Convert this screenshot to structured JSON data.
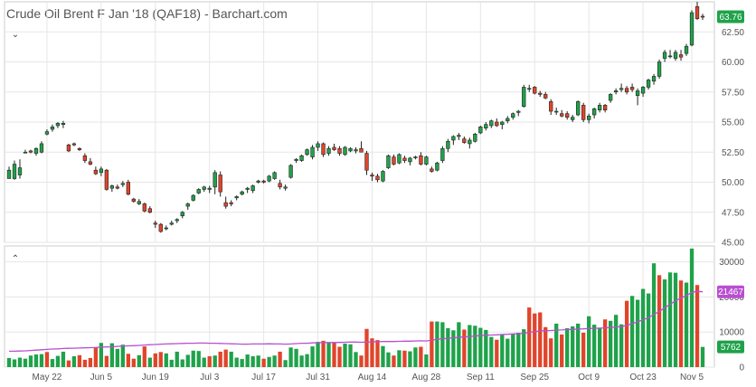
{
  "title": "Crude Oil Brent F Jan '18 (QAF18) - Barchart.com",
  "icons": {
    "price_toggle": "chevron-down-icon",
    "volume_toggle": "chevron-up-icon"
  },
  "colors": {
    "up": "#1fa24a",
    "down": "#e0452b",
    "ma": "#b84fd0",
    "grid": "#e6e6e6",
    "badge_price": "#1fa24a",
    "badge_ma": "#b84fd0",
    "badge_vol": "#1fa24a"
  },
  "chart_data": [
    {
      "type": "candlestick",
      "ylim": [
        45,
        65
      ],
      "yticks": [
        "45.00",
        "47.50",
        "50.00",
        "52.50",
        "55.00",
        "57.50",
        "60.00",
        "62.50"
      ],
      "last_price_label": "63.76",
      "last_price": 63.76,
      "grid": true,
      "x_labels": [
        "May 22",
        "Jun 5",
        "Jun 19",
        "Jul 3",
        "Jul 17",
        "Jul 31",
        "Aug 14",
        "Aug 28",
        "Sep 11",
        "Sep 25",
        "Oct 9",
        "Oct 23",
        "Nov 5"
      ],
      "x_label_index": [
        7,
        17,
        27,
        37,
        47,
        57,
        67,
        77,
        87,
        97,
        107,
        117,
        126
      ],
      "ohlc": [
        [
          50.3,
          51.3,
          50.3,
          51.0
        ],
        [
          50.3,
          51.8,
          50.2,
          51.5
        ],
        [
          50.6,
          51.9,
          50.3,
          51.2
        ],
        [
          52.5,
          52.7,
          52.4,
          52.5
        ],
        [
          52.6,
          52.7,
          52.4,
          52.5
        ],
        [
          52.4,
          52.9,
          52.2,
          52.8
        ],
        [
          52.5,
          53.4,
          52.4,
          53.2
        ],
        [
          54.0,
          54.4,
          53.9,
          54.2
        ],
        [
          54.4,
          54.8,
          54.2,
          54.6
        ],
        [
          54.7,
          55.0,
          54.5,
          54.9
        ],
        [
          54.8,
          55.1,
          54.5,
          54.9
        ],
        [
          53.1,
          53.2,
          52.5,
          52.6
        ],
        [
          53.2,
          53.3,
          53.0,
          53.1
        ],
        [
          52.8,
          52.9,
          52.6,
          52.7
        ],
        [
          52.2,
          52.4,
          51.6,
          51.8
        ],
        [
          51.7,
          52.0,
          51.4,
          51.5
        ],
        [
          51.0,
          51.3,
          50.6,
          50.7
        ],
        [
          50.8,
          51.3,
          50.5,
          51.1
        ],
        [
          51.0,
          51.1,
          49.3,
          49.4
        ],
        [
          49.5,
          49.8,
          49.2,
          49.7
        ],
        [
          49.6,
          49.8,
          49.4,
          49.5
        ],
        [
          49.8,
          50.1,
          49.6,
          49.9
        ],
        [
          50.0,
          50.2,
          48.9,
          49.0
        ],
        [
          48.6,
          48.7,
          48.3,
          48.4
        ],
        [
          48.2,
          48.6,
          48.1,
          48.4
        ],
        [
          48.2,
          48.3,
          47.5,
          47.6
        ],
        [
          47.8,
          48.0,
          47.4,
          47.5
        ],
        [
          46.6,
          46.8,
          46.2,
          46.5
        ],
        [
          46.5,
          46.6,
          45.8,
          45.9
        ],
        [
          46.2,
          46.4,
          46.0,
          46.2
        ],
        [
          46.5,
          46.8,
          46.4,
          46.6
        ],
        [
          46.8,
          47.0,
          46.6,
          46.9
        ],
        [
          47.2,
          47.6,
          47.0,
          47.5
        ],
        [
          48.0,
          48.3,
          47.7,
          48.2
        ],
        [
          48.5,
          49.0,
          48.4,
          48.9
        ],
        [
          49.1,
          49.5,
          49.0,
          49.4
        ],
        [
          49.4,
          49.7,
          49.2,
          49.6
        ],
        [
          49.4,
          49.7,
          49.1,
          49.5
        ],
        [
          49.6,
          51.0,
          49.0,
          50.8
        ],
        [
          50.6,
          50.9,
          48.8,
          49.2
        ],
        [
          48.3,
          48.8,
          47.8,
          48.0
        ],
        [
          48.3,
          48.5,
          48.0,
          48.2
        ],
        [
          48.7,
          48.9,
          48.5,
          48.8
        ],
        [
          49.0,
          49.3,
          48.9,
          49.2
        ],
        [
          49.4,
          49.6,
          49.1,
          49.5
        ],
        [
          49.3,
          49.8,
          49.1,
          49.7
        ],
        [
          50.0,
          50.2,
          49.9,
          50.1
        ],
        [
          50.1,
          50.2,
          49.9,
          50.0
        ],
        [
          50.1,
          50.6,
          50.0,
          50.5
        ],
        [
          50.3,
          50.9,
          50.2,
          50.8
        ],
        [
          49.9,
          50.2,
          49.4,
          49.6
        ],
        [
          49.5,
          49.8,
          49.3,
          49.6
        ],
        [
          50.4,
          51.5,
          50.3,
          51.4
        ],
        [
          51.8,
          52.0,
          51.6,
          51.9
        ],
        [
          51.8,
          52.3,
          51.7,
          52.2
        ],
        [
          52.3,
          52.8,
          52.2,
          52.7
        ],
        [
          52.1,
          53.1,
          51.9,
          52.9
        ],
        [
          52.9,
          53.4,
          52.6,
          53.2
        ],
        [
          53.2,
          53.3,
          52.1,
          52.3
        ],
        [
          52.4,
          53.0,
          52.2,
          52.8
        ],
        [
          52.9,
          53.2,
          52.6,
          52.7
        ],
        [
          52.8,
          53.0,
          52.2,
          52.4
        ],
        [
          52.3,
          53.0,
          52.2,
          52.9
        ],
        [
          52.6,
          52.9,
          52.5,
          52.8
        ],
        [
          52.6,
          52.9,
          52.4,
          52.7
        ],
        [
          52.8,
          53.4,
          52.5,
          52.5
        ],
        [
          52.4,
          52.6,
          50.6,
          51.0
        ],
        [
          50.6,
          50.8,
          50.1,
          50.5
        ],
        [
          50.5,
          50.7,
          50.0,
          50.2
        ],
        [
          50.1,
          51.0,
          50.0,
          50.9
        ],
        [
          51.2,
          52.3,
          51.1,
          52.2
        ],
        [
          52.1,
          52.3,
          51.4,
          51.5
        ],
        [
          51.6,
          52.4,
          51.5,
          52.3
        ],
        [
          52.0,
          52.2,
          51.6,
          51.8
        ],
        [
          51.7,
          52.1,
          51.4,
          52.0
        ],
        [
          52.1,
          52.2,
          51.9,
          52.1
        ],
        [
          52.2,
          52.5,
          51.4,
          51.5
        ],
        [
          51.5,
          52.2,
          51.4,
          52.1
        ],
        [
          51.1,
          51.3,
          50.8,
          50.9
        ],
        [
          51.0,
          51.7,
          50.9,
          51.6
        ],
        [
          51.8,
          53.0,
          51.6,
          52.8
        ],
        [
          52.8,
          53.6,
          52.5,
          53.4
        ],
        [
          53.5,
          53.9,
          53.1,
          53.8
        ],
        [
          53.8,
          54.1,
          53.5,
          53.9
        ],
        [
          53.6,
          53.8,
          53.2,
          53.3
        ],
        [
          53.2,
          53.7,
          52.8,
          53.5
        ],
        [
          53.4,
          54.1,
          53.3,
          54.0
        ],
        [
          54.1,
          54.7,
          54.0,
          54.6
        ],
        [
          54.5,
          55.0,
          54.3,
          54.8
        ],
        [
          54.7,
          55.2,
          54.5,
          55.1
        ],
        [
          55.0,
          55.3,
          54.6,
          54.7
        ],
        [
          54.8,
          55.1,
          54.4,
          55.0
        ],
        [
          55.1,
          55.5,
          54.9,
          55.3
        ],
        [
          55.4,
          55.8,
          55.2,
          55.7
        ],
        [
          55.8,
          56.0,
          55.5,
          55.9
        ],
        [
          56.3,
          58.1,
          56.2,
          57.9
        ],
        [
          57.8,
          58.1,
          57.5,
          57.8
        ],
        [
          57.9,
          58.0,
          57.3,
          57.4
        ],
        [
          57.4,
          57.6,
          57.1,
          57.3
        ],
        [
          57.3,
          57.5,
          56.9,
          57.0
        ],
        [
          56.7,
          56.9,
          55.6,
          55.9
        ],
        [
          55.9,
          56.2,
          55.6,
          55.9
        ],
        [
          55.7,
          56.0,
          55.4,
          55.5
        ],
        [
          55.7,
          55.9,
          55.2,
          55.4
        ],
        [
          55.2,
          55.6,
          55.0,
          55.4
        ],
        [
          55.6,
          56.8,
          55.5,
          56.7
        ],
        [
          56.4,
          56.6,
          55.0,
          55.2
        ],
        [
          55.2,
          55.7,
          54.9,
          55.5
        ],
        [
          55.6,
          56.2,
          55.3,
          56.1
        ],
        [
          56.0,
          56.6,
          55.8,
          56.4
        ],
        [
          56.4,
          56.5,
          55.8,
          56.0
        ],
        [
          56.8,
          57.4,
          56.6,
          57.3
        ],
        [
          57.5,
          57.8,
          57.3,
          57.6
        ],
        [
          57.7,
          58.2,
          57.5,
          57.8
        ],
        [
          57.8,
          58.0,
          57.3,
          57.5
        ],
        [
          57.9,
          58.2,
          57.5,
          57.7
        ],
        [
          57.2,
          57.8,
          56.4,
          57.6
        ],
        [
          57.4,
          58.0,
          57.1,
          57.9
        ],
        [
          57.9,
          58.6,
          57.7,
          58.5
        ],
        [
          58.4,
          59.0,
          58.1,
          58.8
        ],
        [
          58.8,
          60.2,
          58.6,
          60.0
        ],
        [
          60.3,
          61.0,
          60.0,
          60.8
        ],
        [
          60.5,
          61.0,
          60.3,
          60.5
        ],
        [
          60.3,
          61.0,
          60.1,
          60.8
        ],
        [
          60.6,
          61.0,
          60.1,
          60.4
        ],
        [
          60.7,
          61.5,
          60.5,
          61.3
        ],
        [
          61.4,
          64.3,
          61.3,
          64.1
        ],
        [
          64.6,
          65.0,
          63.5,
          63.6
        ],
        [
          63.8,
          64.0,
          63.5,
          63.76
        ]
      ]
    },
    {
      "type": "bar",
      "ylim": [
        0,
        33000
      ],
      "yticks": [
        "0",
        "10000",
        "20000",
        "30000"
      ],
      "ma_label": "21467",
      "last_volume_label": "5762",
      "grid": true,
      "volume": [
        2600,
        2200,
        2700,
        2400,
        3300,
        3600,
        3700,
        4300,
        2300,
        3200,
        4400,
        1900,
        3100,
        3400,
        2100,
        2600,
        5500,
        6900,
        3200,
        6800,
        5200,
        6400,
        3800,
        2400,
        3400,
        5900,
        2700,
        3900,
        4300,
        3900,
        2100,
        4400,
        2200,
        3500,
        4700,
        4600,
        2700,
        3100,
        3300,
        4400,
        5000,
        4400,
        2700,
        2300,
        3600,
        3100,
        3300,
        2400,
        2900,
        3300,
        4400,
        2000,
        5600,
        5200,
        3300,
        3700,
        5900,
        7200,
        7500,
        6900,
        7000,
        5800,
        6700,
        6500,
        4300,
        3300,
        10900,
        8200,
        7700,
        6000,
        4200,
        3300,
        4800,
        4700,
        4500,
        5600,
        5800,
        3600,
        13000,
        13000,
        12800,
        11100,
        10500,
        12800,
        10700,
        12000,
        11800,
        11200,
        10600,
        8600,
        7800,
        9200,
        8100,
        9400,
        9800,
        10800,
        17000,
        15300,
        15600,
        11400,
        8200,
        12400,
        9300,
        11100,
        11600,
        12400,
        9800,
        14500,
        12100,
        11200,
        13600,
        13200,
        14900,
        12200,
        18900,
        20300,
        19200,
        22300,
        21000,
        29600,
        26200,
        25000,
        27000,
        26900,
        24700,
        24100,
        33800,
        23400,
        5762
      ],
      "vol_up": [
        true,
        true,
        true,
        true,
        true,
        true,
        true,
        false,
        true,
        true,
        true,
        false,
        true,
        false,
        false,
        false,
        false,
        true,
        false,
        true,
        true,
        true,
        false,
        false,
        true,
        false,
        true,
        false,
        false,
        true,
        true,
        true,
        true,
        true,
        true,
        true,
        true,
        false,
        true,
        false,
        false,
        true,
        true,
        true,
        true,
        true,
        true,
        false,
        true,
        true,
        false,
        true,
        true,
        true,
        true,
        true,
        true,
        true,
        false,
        true,
        false,
        false,
        true,
        true,
        true,
        false,
        false,
        false,
        false,
        true,
        true,
        false,
        true,
        false,
        true,
        true,
        false,
        true,
        false,
        true,
        true,
        true,
        true,
        true,
        false,
        true,
        true,
        true,
        true,
        true,
        false,
        true,
        true,
        true,
        true,
        true,
        false,
        false,
        false,
        false,
        false,
        true,
        false,
        true,
        true,
        true,
        false,
        true,
        true,
        true,
        false,
        true,
        true,
        true,
        false,
        true,
        true,
        true,
        true,
        true,
        false,
        true,
        true,
        true,
        false,
        true,
        true,
        false,
        true
      ],
      "volume_ma": [
        4500,
        4550,
        4600,
        4650,
        4750,
        4850,
        4950,
        5050,
        5150,
        5200,
        5300,
        5350,
        5400,
        5450,
        5500,
        5550,
        5600,
        5700,
        5750,
        5800,
        5900,
        6000,
        6050,
        6100,
        6200,
        6300,
        6400,
        6450,
        6550,
        6600,
        6650,
        6700,
        6750,
        6800,
        6800,
        6850,
        6850,
        6800,
        6800,
        6750,
        6700,
        6650,
        6600,
        6550,
        6550,
        6600,
        6600,
        6600,
        6650,
        6600,
        6600,
        6550,
        6600,
        6700,
        6800,
        6800,
        6900,
        6950,
        7000,
        7000,
        7000,
        7050,
        7100,
        7150,
        7150,
        7100,
        7150,
        7200,
        7250,
        7300,
        7300,
        7300,
        7350,
        7400,
        7400,
        7450,
        7500,
        7450,
        7700,
        7900,
        8100,
        8200,
        8350,
        8500,
        8600,
        8750,
        8850,
        9000,
        9100,
        9150,
        9200,
        9300,
        9350,
        9450,
        9550,
        9650,
        9900,
        10100,
        10300,
        10400,
        10450,
        10550,
        10600,
        10700,
        10750,
        10850,
        10900,
        11000,
        11050,
        11100,
        11200,
        11300,
        11450,
        11550,
        11900,
        12400,
        12900,
        13500,
        14100,
        15000,
        15900,
        16900,
        17900,
        18900,
        19700,
        20400,
        21300,
        21600,
        21467
      ]
    }
  ]
}
